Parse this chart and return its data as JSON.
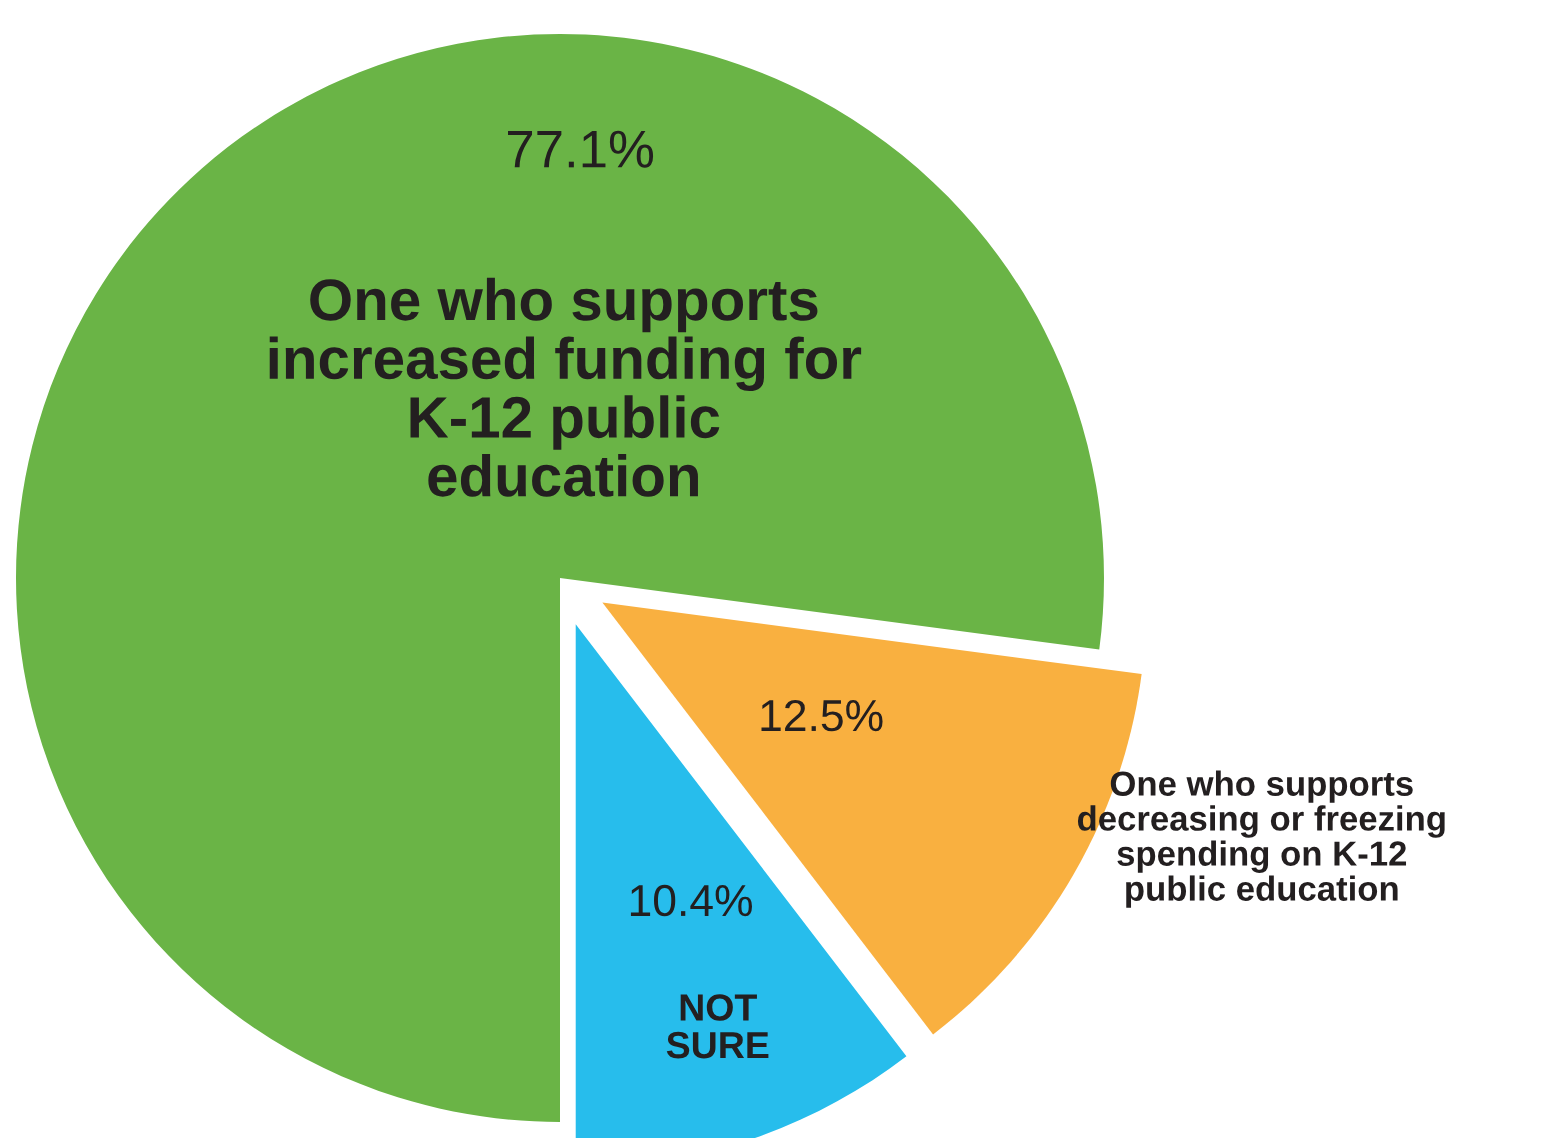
{
  "chart_data": {
    "type": "pie",
    "categories": [
      "One who supports\nincreased funding for\nK-12 public\neducation",
      "One who supports\ndecreasing or freezing\nspending on K-12\npublic education",
      "NOT\nSURE"
    ],
    "values": [
      77.1,
      12.5,
      10.4
    ],
    "colors": [
      "#6ab446",
      "#f9b040",
      "#27bdec"
    ],
    "value_labels": [
      "77.1%",
      "12.5%",
      "10.4%"
    ]
  }
}
